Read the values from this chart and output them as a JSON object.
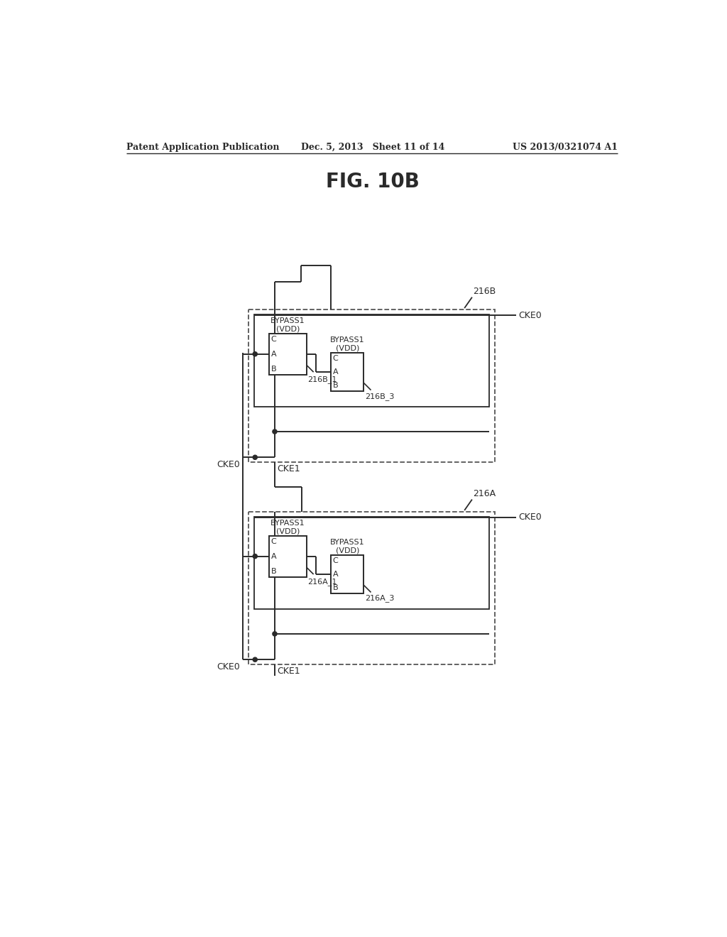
{
  "title": "FIG. 10B",
  "header_left": "Patent Application Publication",
  "header_center": "Dec. 5, 2013   Sheet 11 of 14",
  "header_right": "US 2013/0321074 A1",
  "bg": "#ffffff",
  "lc": "#2a2a2a",
  "dc": "#555555",
  "block_B_gate1": "216B_1",
  "block_B_gate2": "216B_3",
  "block_B_label": "216B",
  "block_A_gate1": "216A_1",
  "block_A_gate2": "216A_3",
  "block_A_label": "216A",
  "bypass_text": "BYPASS1\n(VDD)",
  "cke0": "CKE0",
  "cke1": "CKE1"
}
